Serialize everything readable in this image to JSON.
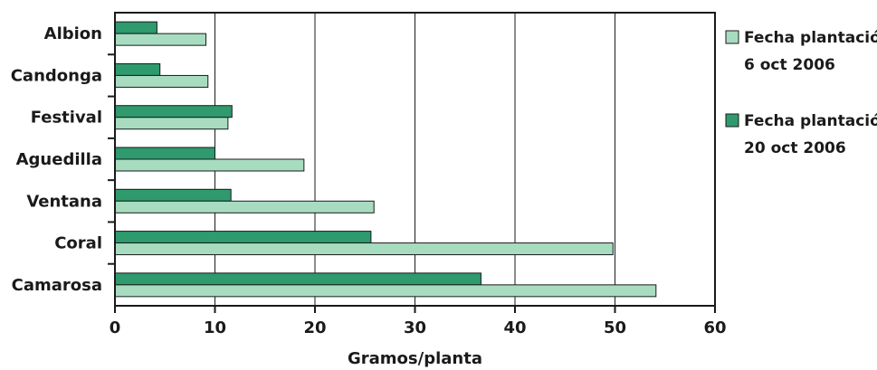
{
  "chart_data": {
    "type": "bar",
    "orientation": "horizontal",
    "categories": [
      "Albion",
      "Candonga",
      "Festival",
      "Aguedilla",
      "Ventana",
      "Coral",
      "Camarosa"
    ],
    "series": [
      {
        "name_line1": "Fecha plantación:",
        "name_line2": "20 oct 2006",
        "color": "#2e9a6e",
        "values": [
          4.2,
          4.5,
          11.7,
          10.0,
          11.6,
          25.6,
          36.6
        ]
      },
      {
        "name_line1": "Fecha plantación:",
        "name_line2": "6 oct 2006",
        "color": "#a8dcc0",
        "values": [
          9.1,
          9.3,
          11.3,
          18.9,
          25.9,
          49.8,
          54.1
        ]
      }
    ],
    "xlabel": "Gramos/planta",
    "xlim": [
      0,
      60
    ],
    "xticks": [
      "0",
      "10",
      "20",
      "30",
      "40",
      "50",
      "60"
    ],
    "grid": "vertical",
    "legend_position": "right"
  }
}
